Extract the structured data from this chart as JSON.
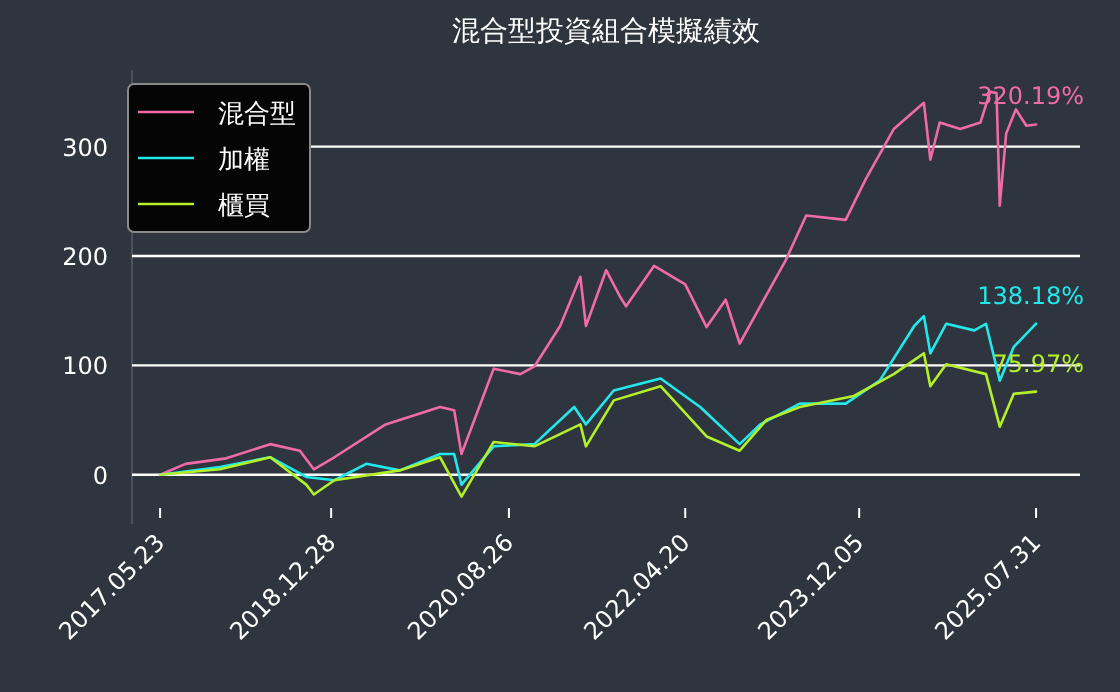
{
  "chart_data": {
    "type": "line",
    "title": "混合型投資組合模擬績效",
    "xlim": [
      "2017-02-16",
      "2025-12-28"
    ],
    "xticks": [
      {
        "value": "2017-05-23",
        "label": "2017.05.23"
      },
      {
        "value": "2018-12-28",
        "label": "2018.12.28"
      },
      {
        "value": "2020-08-26",
        "label": "2020.08.26"
      },
      {
        "value": "2022-04-20",
        "label": "2022.04.20"
      },
      {
        "value": "2023-12-05",
        "label": "2023.12.05"
      },
      {
        "value": "2025-07-31",
        "label": "2025.07.31"
      }
    ],
    "ylim": [
      -45,
      370
    ],
    "yticks": [
      0,
      100,
      200,
      300
    ],
    "grid": "y",
    "legend": "top left",
    "line_style": "solid",
    "series": [
      {
        "name": "混合型",
        "color": "#f06ba8",
        "x": [
          "2017-05-23",
          "2017-08-18",
          "2018-01-04",
          "2018-06-03",
          "2018-09-12",
          "2018-10-30",
          "2019-01-08",
          "2019-07-02",
          "2020-01-04",
          "2020-02-21",
          "2020-03-17",
          "2020-04-30",
          "2020-07-05",
          "2020-10-04",
          "2020-11-21",
          "2021-02-17",
          "2021-04-27",
          "2021-05-16",
          "2021-07-24",
          "2021-09-09",
          "2021-09-30",
          "2022-01-04",
          "2022-04-20",
          "2022-07-02",
          "2022-09-05",
          "2022-10-23",
          "2023-01-01",
          "2023-03-29",
          "2023-06-07",
          "2023-10-20",
          "2023-12-27",
          "2024-04-01",
          "2024-07-13",
          "2024-08-04",
          "2024-09-05",
          "2024-11-14",
          "2025-01-22",
          "2025-02-24",
          "2025-03-18",
          "2025-03-29",
          "2025-04-20",
          "2025-05-23",
          "2025-06-28",
          "2025-07-31"
        ],
        "values": [
          0,
          10,
          15,
          28,
          22,
          5,
          16,
          46,
          62,
          59,
          19,
          50,
          97,
          92,
          99,
          136,
          181,
          136,
          187,
          163,
          154,
          191,
          174,
          135,
          160,
          120,
          154,
          196,
          237,
          233,
          270,
          316,
          340,
          288,
          322,
          316,
          322,
          350,
          349,
          246,
          312,
          334,
          319,
          320.19
        ]
      },
      {
        "name": "加權",
        "color": "#22e8ec",
        "x": [
          "2017-05-23",
          "2017-12-13",
          "2018-06-03",
          "2018-10-04",
          "2019-01-08",
          "2019-04-27",
          "2019-08-19",
          "2020-01-04",
          "2020-02-21",
          "2020-03-17",
          "2020-07-05",
          "2020-11-21",
          "2021-04-06",
          "2021-05-16",
          "2021-08-19",
          "2022-01-26",
          "2022-06-10",
          "2022-10-23",
          "2023-01-01",
          "2023-05-16",
          "2023-10-20",
          "2024-02-13",
          "2024-06-10",
          "2024-07-13",
          "2024-08-04",
          "2024-09-27",
          "2025-01-01",
          "2025-02-10",
          "2025-03-29",
          "2025-05-16",
          "2025-07-31"
        ],
        "values": [
          0,
          7,
          16,
          -2,
          -5,
          10,
          4,
          19,
          19,
          -9,
          26,
          28,
          62,
          46,
          77,
          88,
          62,
          28,
          46,
          65,
          65,
          86,
          136,
          145,
          111,
          138,
          132,
          138,
          86,
          117,
          138.18
        ]
      },
      {
        "name": "櫃買",
        "color": "#b4f02a",
        "x": [
          "2017-05-23",
          "2017-12-13",
          "2018-06-03",
          "2018-10-04",
          "2018-10-30",
          "2019-01-08",
          "2019-08-19",
          "2020-01-04",
          "2020-03-17",
          "2020-07-05",
          "2020-11-21",
          "2021-04-27",
          "2021-05-16",
          "2021-08-19",
          "2022-01-26",
          "2022-07-02",
          "2022-10-23",
          "2023-01-22",
          "2023-05-16",
          "2023-11-17",
          "2024-04-01",
          "2024-07-13",
          "2024-08-04",
          "2024-09-27",
          "2025-02-10",
          "2025-03-29",
          "2025-05-16",
          "2025-07-31"
        ],
        "values": [
          0,
          5,
          16,
          -9,
          -18,
          -5,
          4,
          16,
          -20,
          30,
          26,
          46,
          26,
          68,
          81,
          35,
          22,
          50,
          62,
          72,
          92,
          111,
          81,
          101,
          92,
          44,
          74,
          75.97
        ]
      }
    ],
    "annotations": [
      {
        "text": "320.19%",
        "x": "2025-07-31",
        "y": 320.19
      },
      {
        "text": "138.18%",
        "x": "2025-07-31",
        "y": 138.18
      },
      {
        "text": "75.97%",
        "x": "2025-07-31",
        "y": 75.97
      }
    ]
  }
}
